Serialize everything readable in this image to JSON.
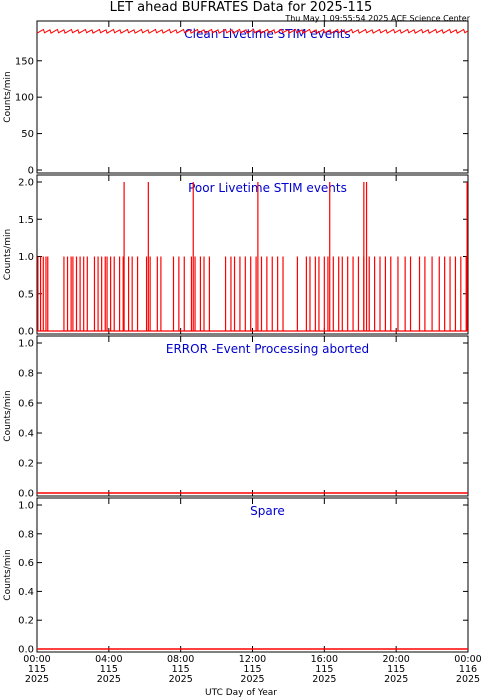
{
  "title": "LET ahead BUFRATES Data for 2025-115",
  "timestamp": "Thu May  1 09:55:54 2025 ACE Science Center",
  "xlabel": "UTC Day of Year",
  "colors": {
    "data": "#ff0000",
    "panel_label": "#0000cc",
    "axes": "#000000"
  },
  "x_ticks": [
    {
      "hours": 0,
      "time": "00:00",
      "doy": "115",
      "year": "2025"
    },
    {
      "hours": 4,
      "time": "04:00",
      "doy": "115",
      "year": "2025"
    },
    {
      "hours": 8,
      "time": "08:00",
      "doy": "115",
      "year": "2025"
    },
    {
      "hours": 12,
      "time": "12:00",
      "doy": "115",
      "year": "2025"
    },
    {
      "hours": 16,
      "time": "16:00",
      "doy": "115",
      "year": "2025"
    },
    {
      "hours": 20,
      "time": "20:00",
      "doy": "115",
      "year": "2025"
    },
    {
      "hours": 24,
      "time": "00:00",
      "doy": "116",
      "year": "2025"
    }
  ],
  "chart_data": [
    {
      "type": "line",
      "panel_label": "Clean Livetime STIM events",
      "ylabel": "Counts/min",
      "xlim": [
        0,
        24
      ],
      "ylim": [
        0,
        195
      ],
      "yticks": [
        "0",
        "50",
        "100",
        "150"
      ],
      "ytick_values": [
        0,
        50,
        100,
        150
      ],
      "series": [
        {
          "values_description": "",
          "x": [
            0,
            24
          ],
          "y": [
            191,
            191
          ],
          "noise": [
            188,
            193
          ]
        }
      ]
    },
    {
      "type": "line",
      "panel_label": "Poor Livetime STIM events",
      "ylabel": "Counts/min",
      "xlim": [
        0,
        24
      ],
      "ylim": [
        0,
        2
      ],
      "yticks": [
        "0.0",
        "0.5",
        "1.0",
        "1.5",
        "2.0"
      ],
      "ytick_values": [
        0,
        0.5,
        1,
        1.5,
        2
      ],
      "series": [
        {
          "spikes_at_1": [
            0.05,
            0.2,
            0.35,
            0.5,
            0.6,
            1.5,
            1.7,
            1.9,
            2.0,
            2.2,
            2.4,
            2.6,
            2.8,
            3.2,
            3.4,
            3.6,
            3.8,
            3.9,
            4.1,
            4.3,
            4.6,
            4.8,
            5.1,
            5.3,
            5.6,
            6.1,
            6.3,
            6.7,
            6.9,
            7.6,
            7.9,
            8.2,
            8.6,
            8.8,
            9.1,
            9.3,
            9.6,
            10.5,
            10.8,
            11.0,
            11.3,
            11.6,
            11.9,
            12.2,
            12.5,
            12.8,
            13.1,
            13.4,
            13.7,
            14.5,
            15.0,
            15.2,
            15.5,
            15.7,
            16.0,
            16.2,
            16.5,
            16.8,
            17.0,
            17.3,
            17.6,
            17.9,
            18.2,
            18.5,
            18.8,
            19.1,
            19.4,
            19.7,
            20.1,
            20.5,
            20.8,
            21.3,
            21.6,
            22.0,
            22.4,
            22.7,
            23.0,
            23.3,
            23.6,
            23.9
          ],
          "spikes_at_2": [
            4.85,
            6.2,
            8.7,
            12.3,
            16.3,
            18.2,
            18.35,
            23.95
          ]
        }
      ]
    },
    {
      "type": "line",
      "panel_label": "ERROR -Event Processing aborted",
      "ylabel": "Counts/min",
      "xlim": [
        0,
        24
      ],
      "ylim": [
        0,
        1
      ],
      "yticks": [
        "0.0",
        "0.2",
        "0.4",
        "0.6",
        "0.8",
        "1.0"
      ],
      "ytick_values": [
        0,
        0.2,
        0.4,
        0.6,
        0.8,
        1.0
      ],
      "series": [
        {
          "x": [
            0,
            24
          ],
          "y": [
            0,
            0
          ]
        }
      ]
    },
    {
      "type": "line",
      "panel_label": "Spare",
      "ylabel": "Counts/min",
      "xlim": [
        0,
        24
      ],
      "ylim": [
        0,
        1
      ],
      "yticks": [
        "0.0",
        "0.2",
        "0.4",
        "0.6",
        "0.8",
        "1.0"
      ],
      "ytick_values": [
        0,
        0.2,
        0.4,
        0.6,
        0.8,
        1.0
      ],
      "series": [
        {
          "x": [
            0,
            24
          ],
          "y": [
            0,
            0
          ]
        }
      ]
    }
  ]
}
